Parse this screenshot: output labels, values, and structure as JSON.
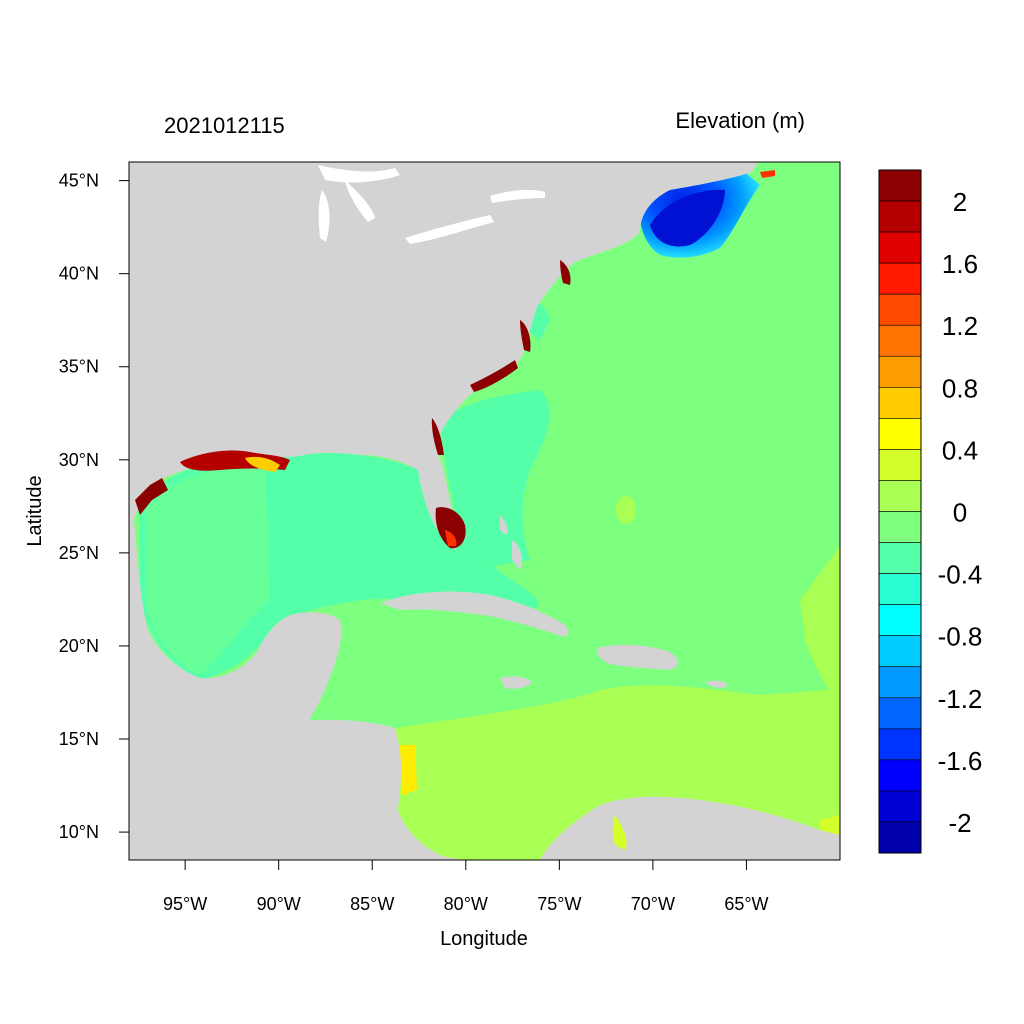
{
  "map": {
    "timestamp": "2021012115",
    "variable_title": "Elevation (m)",
    "x_axis_label": "Longitude",
    "y_axis_label": "Latitude",
    "lon_range": [
      -98,
      -60
    ],
    "lat_range": [
      8.5,
      46
    ],
    "lon_ticks": [
      {
        "value": -95,
        "label": "95°W"
      },
      {
        "value": -90,
        "label": "90°W"
      },
      {
        "value": -85,
        "label": "85°W"
      },
      {
        "value": -80,
        "label": "80°W"
      },
      {
        "value": -75,
        "label": "75°W"
      },
      {
        "value": -70,
        "label": "70°W"
      },
      {
        "value": -65,
        "label": "65°W"
      }
    ],
    "lat_ticks": [
      {
        "value": 45,
        "label": "45°N"
      },
      {
        "value": 40,
        "label": "40°N"
      },
      {
        "value": 35,
        "label": "35°N"
      },
      {
        "value": 30,
        "label": "30°N"
      },
      {
        "value": 25,
        "label": "25°N"
      },
      {
        "value": 20,
        "label": "20°N"
      },
      {
        "value": 15,
        "label": "15°N"
      },
      {
        "value": 10,
        "label": "10°N"
      }
    ],
    "colors": {
      "land": "#d3d3d3",
      "background": "#ffffff"
    }
  },
  "colorbar": {
    "colors": [
      "#8b0000",
      "#b50000",
      "#e00000",
      "#ff1a00",
      "#ff4a00",
      "#ff7300",
      "#ff9e00",
      "#ffcc00",
      "#ffff00",
      "#d4ff2a",
      "#aaff55",
      "#7fff7f",
      "#55ffaa",
      "#2affd4",
      "#00ffff",
      "#00ccff",
      "#0099ff",
      "#0066ff",
      "#0033ff",
      "#0000ff",
      "#0000d4",
      "#0000aa"
    ],
    "labels": [
      "2",
      "1.6",
      "1.2",
      "0.8",
      "0.4",
      "0",
      "-0.4",
      "-0.8",
      "-1.2",
      "-1.6",
      "-2"
    ]
  }
}
